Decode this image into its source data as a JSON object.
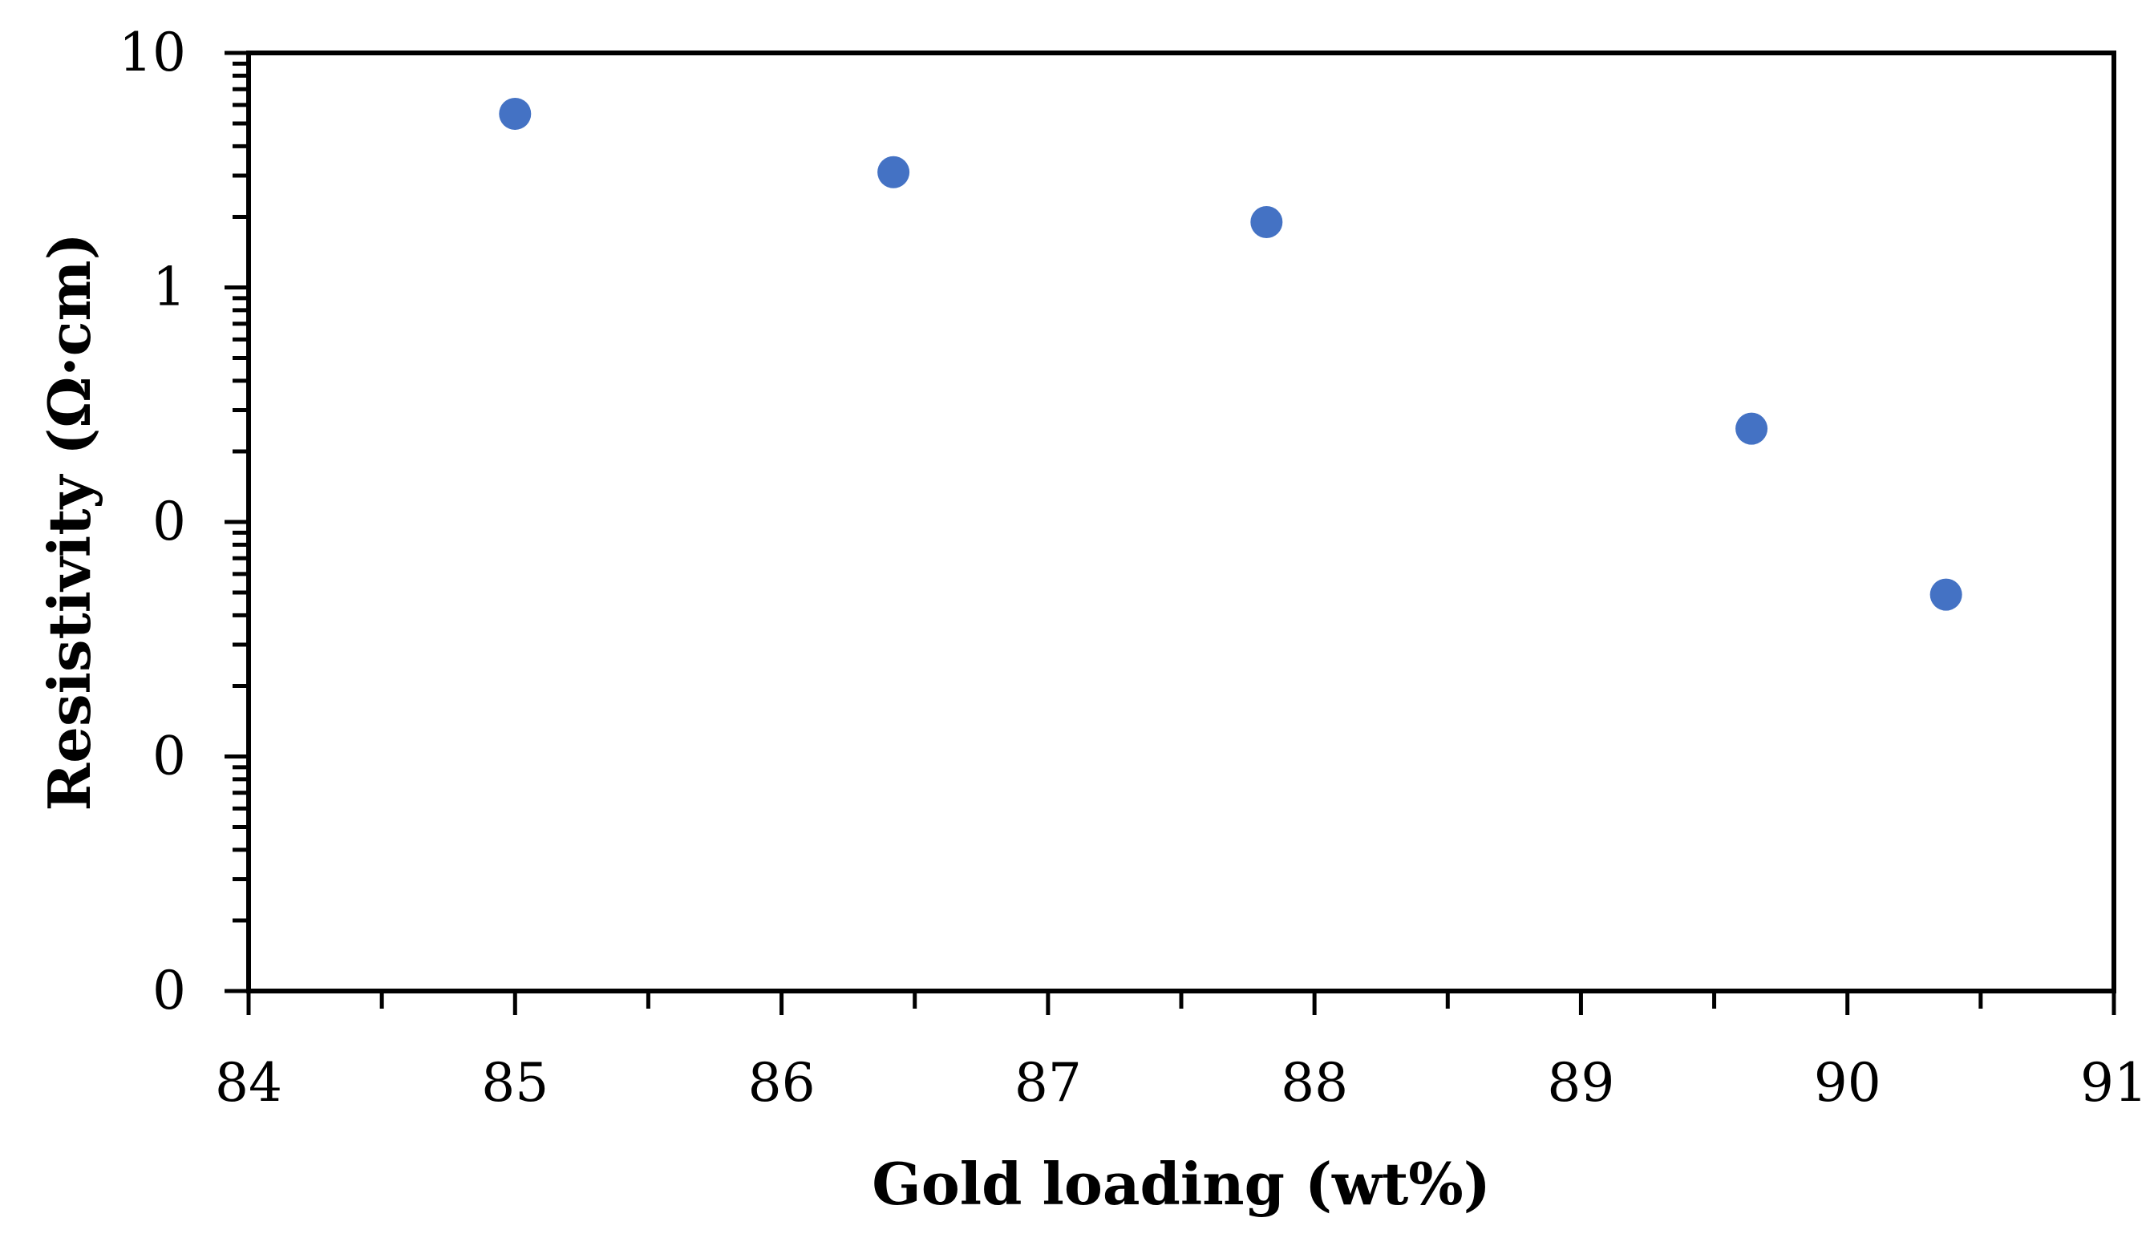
{
  "chart_data": {
    "type": "scatter",
    "title": "",
    "xlabel": "Gold loading (wt%)",
    "ylabel": "Resistivity (Ω·cm)",
    "x_scale": "linear",
    "y_scale": "log",
    "xlim": [
      84,
      91
    ],
    "ylim": [
      0.001,
      10
    ],
    "x_ticks": [
      84,
      85,
      86,
      87,
      88,
      89,
      90,
      91
    ],
    "x_tick_labels": [
      "84",
      "85",
      "86",
      "87",
      "88",
      "89",
      "90",
      "91"
    ],
    "y_ticks": [
      0.001,
      0.01,
      0.1,
      1,
      10
    ],
    "y_tick_labels": [
      "0",
      "0",
      "0",
      "1",
      "10"
    ],
    "grid": false,
    "legend": "none",
    "marker_color": "#4472C4",
    "series": [
      {
        "points": [
          {
            "x": 85.0,
            "y": 5.5
          },
          {
            "x": 86.42,
            "y": 3.1
          },
          {
            "x": 87.82,
            "y": 1.9
          },
          {
            "x": 89.64,
            "y": 0.25
          },
          {
            "x": 90.37,
            "y": 0.049
          }
        ]
      }
    ]
  }
}
